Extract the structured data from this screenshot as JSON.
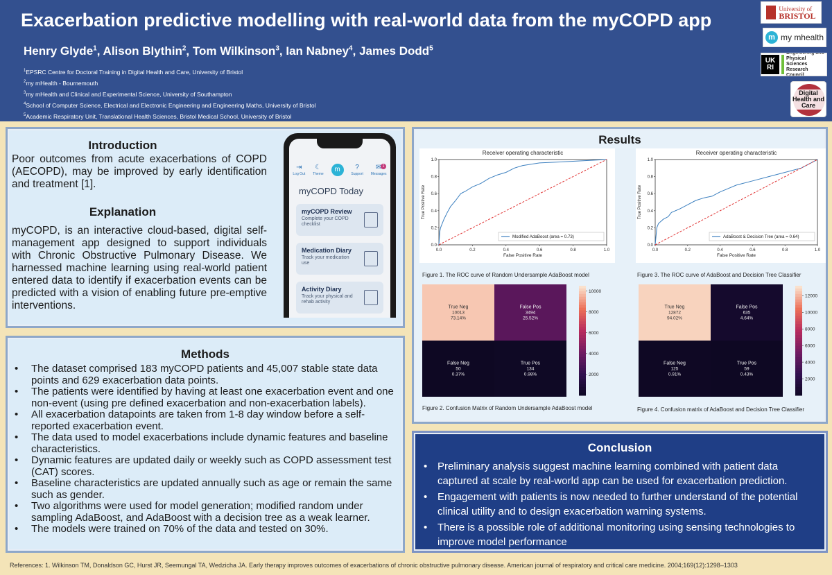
{
  "header": {
    "title": "Exacerbation predictive modelling with real-world data from the myCOPD app",
    "authors": [
      {
        "name": "Henry Glyde",
        "sup": "1"
      },
      {
        "name": "Alison Blythin",
        "sup": "2"
      },
      {
        "name": "Tom Wilkinson",
        "sup": "3"
      },
      {
        "name": "Ian Nabney",
        "sup": "4"
      },
      {
        "name": "James Dodd",
        "sup": "5"
      }
    ],
    "affiliations": [
      {
        "sup": "1",
        "text": "EPSRC Centre for Doctoral Training in Digital Health and Care, University of Bristol"
      },
      {
        "sup": "2",
        "text": "my mHealth - Bournemouth"
      },
      {
        "sup": "3",
        "text": "my mHealth and Clinical and Experimental Science, University of Southampton"
      },
      {
        "sup": "4",
        "text": "School of Computer Science, Electrical and Electronic Engineering and Engineering Maths, University of Bristol"
      },
      {
        "sup": "5",
        "text": "Academic Respiratory Unit, Translational Health Sciences, Bristol Medical School, University of Bristol"
      }
    ],
    "logos": {
      "bristol_line1": "University of",
      "bristol_line2": "BRISTOL",
      "mymhealth_m": "m",
      "mymhealth_text": "my mhealth",
      "ukri": "UK RI",
      "epsrc": "Engineering and Physical Sciences Research Council",
      "dhc": "Digital Health and Care"
    }
  },
  "introduction": {
    "heading": "Introduction",
    "text": "Poor outcomes from acute exacerbations of COPD (AECOPD), may be improved by early identification and treatment [1].",
    "explanation_heading": "Explanation",
    "explanation_text": "myCOPD, is an interactive cloud-based, digital self-management app designed to support individuals with Chronic Obstructive Pulmonary Disease. We harnessed machine learning using real-world patient entered data to identify if exacerbation events can be predicted with a vision of enabling future pre-emptive interventions."
  },
  "phone": {
    "nav": [
      {
        "icon": "logout-icon",
        "glyph": "⇥",
        "label": "Log Out"
      },
      {
        "icon": "theme-icon",
        "glyph": "☾",
        "label": "Theme"
      },
      {
        "icon": "home-icon",
        "glyph": "m",
        "label": ""
      },
      {
        "icon": "support-icon",
        "glyph": "?",
        "label": "Support"
      },
      {
        "icon": "messages-icon",
        "glyph": "✉",
        "label": "Messages"
      }
    ],
    "badge": "1",
    "today": "myCOPD Today",
    "cards": [
      {
        "title": "myCOPD Review",
        "sub": "Complete your COPD checklist"
      },
      {
        "title": "Medication Diary",
        "sub": "Track your medication use"
      },
      {
        "title": "Activity Diary",
        "sub": "Track your physical and rehab activity"
      },
      {
        "title": "",
        "sub": ""
      }
    ]
  },
  "methods": {
    "heading": "Methods",
    "items": [
      "The dataset comprised 183 myCOPD patients and 45,007 stable state data points and 629 exacerbation data points.",
      "The patients were identified by having at least one exacerbation event and one non-event (using pre defined exacerbation and non-exacerbation labels).",
      "All exacerbation datapoints are taken from 1-8 day window before a self-reported exacerbation event.",
      "The data used to model exacerbations include dynamic features and baseline characteristics.",
      "Dynamic features are updated daily or weekly such as COPD assessment test (CAT) scores.",
      "Baseline characteristics are updated annually such as age or remain the same such as gender.",
      "Two algorithms were used for model generation; modified random under sampling AdaBoost, and AdaBoost with a decision tree as a weak learner.",
      "The models were trained on 70% of the data and tested on 30%."
    ]
  },
  "results": {
    "heading": "Results",
    "captions": {
      "fig1": "Figure 1. The ROC curve of Random Undersample AdaBoost model",
      "fig2": "Figure 2. Confusion Matrix of Random Undersample AdaBoost model",
      "fig3": "Figure 3. The ROC curve of AdaBoost and Decision Tree Classifier",
      "fig4": "Figure 4. Confusion matrix of AdaBoost and Decision Tree Classifier"
    }
  },
  "chart_data": [
    {
      "type": "line",
      "title": "Receiver operating characteristic",
      "xlabel": "False Positive Rate",
      "ylabel": "True Positive Rate",
      "xlim": [
        0,
        1
      ],
      "ylim": [
        0,
        1
      ],
      "xticks": [
        "0.0",
        "0.2",
        "0.4",
        "0.6",
        "0.8",
        "1.0"
      ],
      "yticks": [
        "0.0",
        "0.2",
        "0.4",
        "0.6",
        "0.8",
        "1.0"
      ],
      "legend_position": "lower-right",
      "series": [
        {
          "name": "Modified AdaBoost (area = 0.73)",
          "color": "#3b7fbf",
          "x": [
            0,
            0.005,
            0.01,
            0.02,
            0.03,
            0.05,
            0.07,
            0.1,
            0.13,
            0.16,
            0.2,
            0.25,
            0.3,
            0.35,
            0.4,
            0.45,
            0.5,
            0.6,
            0.7,
            0.8,
            0.9,
            1.0
          ],
          "y": [
            0,
            0.15,
            0.2,
            0.25,
            0.3,
            0.38,
            0.45,
            0.52,
            0.6,
            0.63,
            0.68,
            0.72,
            0.78,
            0.82,
            0.85,
            0.9,
            0.93,
            0.96,
            0.97,
            0.98,
            0.99,
            1.0
          ]
        },
        {
          "name": "",
          "color": "#e03030",
          "dashed": true,
          "x": [
            0,
            1
          ],
          "y": [
            0,
            1
          ]
        }
      ]
    },
    {
      "type": "line",
      "title": "Receiver operating characteristic",
      "xlabel": "False Positive Rate",
      "ylabel": "True Positive Rate",
      "xlim": [
        0,
        1
      ],
      "ylim": [
        0,
        1
      ],
      "xticks": [
        "0.0",
        "0.2",
        "0.4",
        "0.6",
        "0.8",
        "1.0"
      ],
      "yticks": [
        "0.0",
        "0.2",
        "0.4",
        "0.6",
        "0.8",
        "1.0"
      ],
      "legend_position": "lower-right",
      "series": [
        {
          "name": "AdaBoost & Decision Tree (area = 0.64)",
          "color": "#3b7fbf",
          "x": [
            0,
            0.01,
            0.02,
            0.05,
            0.08,
            0.1,
            0.15,
            0.2,
            0.25,
            0.3,
            0.35,
            0.4,
            0.45,
            0.5,
            0.6,
            0.7,
            0.8,
            0.9,
            0.95,
            1.0
          ],
          "y": [
            0,
            0.2,
            0.25,
            0.3,
            0.33,
            0.38,
            0.42,
            0.47,
            0.52,
            0.55,
            0.57,
            0.62,
            0.66,
            0.7,
            0.75,
            0.8,
            0.85,
            0.9,
            0.95,
            1.0
          ]
        },
        {
          "name": "",
          "color": "#e03030",
          "dashed": true,
          "x": [
            0,
            1
          ],
          "y": [
            0,
            1
          ]
        }
      ]
    },
    {
      "type": "heatmap",
      "cells": [
        [
          {
            "label": "True Neg",
            "count": "10013",
            "pct": "73.14%",
            "value": 10013
          },
          {
            "label": "False Pos",
            "count": "3494",
            "pct": "25.52%",
            "value": 3494
          }
        ],
        [
          {
            "label": "False Neg",
            "count": "50",
            "pct": "0.37%",
            "value": 50
          },
          {
            "label": "True Pos",
            "count": "134",
            "pct": "0.98%",
            "value": 134
          }
        ]
      ],
      "colorbar": {
        "min": 0,
        "max": 10500,
        "ticks": [
          "10000",
          "8000",
          "6000",
          "4000",
          "2000"
        ],
        "tick_values": [
          10000,
          8000,
          6000,
          4000,
          2000
        ]
      }
    },
    {
      "type": "heatmap",
      "cells": [
        [
          {
            "label": "True Neg",
            "count": "12872",
            "pct": "94.02%",
            "value": 12872
          },
          {
            "label": "False Pos",
            "count": "635",
            "pct": "4.64%",
            "value": 635
          }
        ],
        [
          {
            "label": "False Neg",
            "count": "125",
            "pct": "0.91%",
            "value": 125
          },
          {
            "label": "True Pos",
            "count": "59",
            "pct": "0.43%",
            "value": 59
          }
        ]
      ],
      "colorbar": {
        "min": 0,
        "max": 13200,
        "ticks": [
          "12000",
          "10000",
          "8000",
          "6000",
          "4000",
          "2000"
        ],
        "tick_values": [
          12000,
          10000,
          8000,
          6000,
          4000,
          2000
        ]
      }
    }
  ],
  "conclusion": {
    "heading": "Conclusion",
    "items": [
      "Preliminary analysis suggest machine learning combined with patient data captured at scale by real-world app can be used for exacerbation prediction.",
      "Engagement with patients is now needed to further understand of the potential clinical utility and to design exacerbation warning systems.",
      "There is a possible role of additional monitoring using sensing technologies to improve model performance"
    ]
  },
  "references": "References:  1. Wilkinson TM, Donaldson GC, Hurst JR, Seemungal TA, Wedzicha JA. Early therapy improves outcomes of exacerbations of chronic obstructive pulmonary disease. American journal of respiratory and critical care medicine. 2004;169(12):1298–1303"
}
